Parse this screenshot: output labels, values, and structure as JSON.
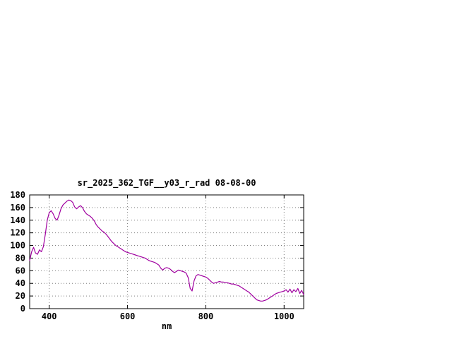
{
  "page": {
    "background_color": "#ffffff"
  },
  "chart_data": {
    "type": "line",
    "title": "sr_2025_362_TGF__y03_r_rad 08-08-00",
    "xlabel": "nm",
    "ylabel": "",
    "xlim": [
      350,
      1050
    ],
    "ylim": [
      0,
      180
    ],
    "x_ticks": [
      400,
      600,
      800,
      1000
    ],
    "y_ticks": [
      0,
      20,
      40,
      60,
      80,
      100,
      120,
      140,
      160,
      180
    ],
    "grid": true,
    "legend_position": "none",
    "line_color": "#a000a0",
    "series": [
      {
        "name": "sr_2025_362_TGF__y03_r_rad",
        "x": [
          350,
          355,
          360,
          365,
          370,
          375,
          380,
          385,
          390,
          395,
          400,
          405,
          410,
          415,
          420,
          425,
          430,
          435,
          440,
          445,
          450,
          455,
          460,
          465,
          470,
          475,
          480,
          485,
          490,
          495,
          500,
          505,
          510,
          515,
          520,
          525,
          530,
          535,
          540,
          545,
          550,
          555,
          560,
          565,
          570,
          575,
          580,
          585,
          590,
          595,
          600,
          605,
          610,
          615,
          620,
          625,
          630,
          635,
          640,
          645,
          650,
          655,
          660,
          665,
          670,
          675,
          680,
          685,
          690,
          695,
          700,
          705,
          710,
          715,
          720,
          725,
          730,
          735,
          740,
          745,
          750,
          755,
          760,
          765,
          770,
          775,
          780,
          785,
          790,
          795,
          800,
          805,
          810,
          815,
          820,
          825,
          830,
          835,
          840,
          845,
          850,
          855,
          860,
          865,
          870,
          875,
          880,
          885,
          890,
          895,
          900,
          905,
          910,
          915,
          920,
          925,
          930,
          935,
          940,
          945,
          950,
          955,
          960,
          965,
          970,
          975,
          980,
          985,
          990,
          995,
          1000,
          1005,
          1010,
          1015,
          1020,
          1025,
          1030,
          1035,
          1040,
          1045,
          1050
        ],
        "y": [
          76,
          90,
          97,
          88,
          86,
          93,
          90,
          98,
          118,
          140,
          152,
          155,
          150,
          143,
          140,
          148,
          158,
          164,
          167,
          170,
          172,
          171,
          168,
          161,
          158,
          161,
          163,
          160,
          154,
          150,
          148,
          146,
          143,
          139,
          133,
          129,
          126,
          123,
          121,
          118,
          114,
          110,
          106,
          103,
          100,
          98,
          96,
          94,
          92,
          90,
          89,
          88,
          87,
          86,
          85,
          84,
          83,
          82,
          81,
          80,
          78,
          76,
          75,
          74,
          73,
          71,
          69,
          64,
          61,
          64,
          65,
          64,
          62,
          59,
          57,
          59,
          61,
          60,
          59,
          58,
          56,
          49,
          32,
          28,
          44,
          52,
          54,
          53,
          52,
          51,
          50,
          48,
          45,
          42,
          40,
          41,
          42,
          43,
          42,
          42,
          41,
          41,
          40,
          39,
          39,
          38,
          37,
          36,
          34,
          32,
          30,
          28,
          26,
          23,
          20,
          17,
          14,
          13,
          12,
          12,
          13,
          14,
          16,
          18,
          20,
          22,
          24,
          25,
          26,
          27,
          28,
          30,
          26,
          31,
          25,
          30,
          27,
          32,
          24,
          29,
          22
        ]
      }
    ]
  }
}
